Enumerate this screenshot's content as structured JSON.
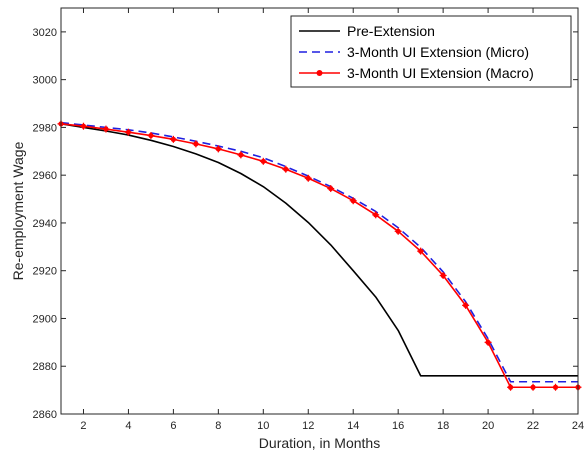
{
  "chart_data": {
    "type": "line",
    "title": "",
    "xlabel": "Duration, in Months",
    "ylabel": "Re-employment Wage",
    "xlim": [
      1,
      24
    ],
    "ylim": [
      2860,
      3030
    ],
    "xticks": [
      2,
      4,
      6,
      8,
      10,
      12,
      14,
      16,
      18,
      20,
      22,
      24
    ],
    "yticks": [
      2860,
      2880,
      2900,
      2920,
      2940,
      2960,
      2980,
      3000,
      3020
    ],
    "grid": false,
    "legend_position": "top-right",
    "x": [
      1,
      2,
      3,
      4,
      5,
      6,
      7,
      8,
      9,
      10,
      11,
      12,
      13,
      14,
      15,
      16,
      17,
      18,
      19,
      20,
      21,
      22,
      23,
      24
    ],
    "series": [
      {
        "name": "Pre-Extension",
        "color": "#000000",
        "style": "solid",
        "marker": "none",
        "values": [
          2981.5,
          2980.0,
          2978.5,
          2976.8,
          2974.6,
          2972.0,
          2968.9,
          2965.3,
          2960.7,
          2955.2,
          2948.3,
          2940.2,
          2930.8,
          2920.0,
          2909.0,
          2895.0,
          2876,
          2876,
          2876,
          2876,
          2876,
          2876,
          2876,
          2876
        ]
      },
      {
        "name": "3-Month UI Extension (Micro)",
        "color": "#1f1fe0",
        "style": "dashed",
        "marker": "none",
        "values": [
          2982.0,
          2981.0,
          2980.0,
          2979.0,
          2977.7,
          2976.0,
          2974.2,
          2972.2,
          2970.0,
          2967.3,
          2963.6,
          2959.6,
          2955.2,
          2950.3,
          2944.8,
          2938.0,
          2929.8,
          2919.5,
          2907.0,
          2891.5,
          2873.5,
          2873.5,
          2873.5,
          2873.5
        ]
      },
      {
        "name": "3-Month UI Extension (Macro)",
        "color": "#ff0000",
        "style": "solid",
        "marker": "star",
        "values": [
          2981.5,
          2980.5,
          2979.3,
          2978.0,
          2976.6,
          2975.0,
          2973.1,
          2971.0,
          2968.5,
          2965.8,
          2962.5,
          2958.7,
          2954.4,
          2949.3,
          2943.4,
          2936.5,
          2928.2,
          2918.0,
          2905.5,
          2890.0,
          2871.2,
          2871.2,
          2871.2,
          2871.2
        ]
      }
    ]
  }
}
